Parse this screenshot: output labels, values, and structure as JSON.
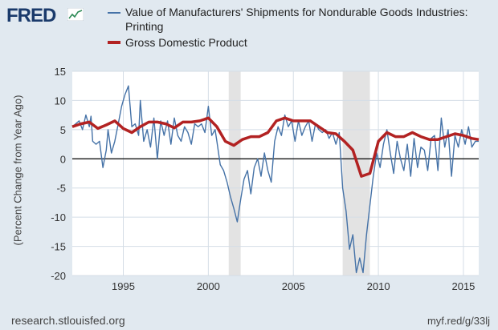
{
  "header": {
    "logo_text": "FRED"
  },
  "footer": {
    "source": "research.stlouisfed.org",
    "short_url": "myf.red/g/33lj"
  },
  "chart_data": {
    "type": "line",
    "title": "",
    "xlabel": "",
    "ylabel": "(Percent Change from Year Ago)",
    "xlim": [
      1992.0,
      2015.9
    ],
    "ylim": [
      -20,
      15
    ],
    "yticks": [
      15,
      10,
      5,
      0,
      -5,
      -10,
      -15,
      -20
    ],
    "xticks": [
      1995,
      2000,
      2005,
      2010,
      2015
    ],
    "grid": true,
    "legend_position": "top",
    "recessions": [
      [
        2001.2,
        2001.9
      ],
      [
        2007.9,
        2009.5
      ]
    ],
    "series": [
      {
        "name": "Value of Manufacturers' Shipments for Nondurable Goods Industries: Printing",
        "color": "#4572a7",
        "x": [
          1992.0,
          1992.2,
          1992.4,
          1992.6,
          1992.8,
          1993.0,
          1993.1,
          1993.2,
          1993.4,
          1993.6,
          1993.8,
          1994.0,
          1994.1,
          1994.3,
          1994.5,
          1994.7,
          1994.9,
          1995.1,
          1995.3,
          1995.5,
          1995.7,
          1995.9,
          1996.0,
          1996.2,
          1996.4,
          1996.6,
          1996.8,
          1997.0,
          1997.2,
          1997.4,
          1997.6,
          1997.8,
          1998.0,
          1998.2,
          1998.4,
          1998.6,
          1998.8,
          1999.0,
          1999.2,
          1999.4,
          1999.6,
          1999.8,
          2000.0,
          2000.2,
          2000.4,
          2000.5,
          2000.7,
          2000.9,
          2001.1,
          2001.3,
          2001.5,
          2001.7,
          2001.9,
          2002.1,
          2002.3,
          2002.5,
          2002.7,
          2002.9,
          2003.1,
          2003.3,
          2003.5,
          2003.7,
          2003.9,
          2004.1,
          2004.3,
          2004.5,
          2004.7,
          2004.9,
          2005.1,
          2005.3,
          2005.5,
          2005.7,
          2005.9,
          2006.1,
          2006.3,
          2006.5,
          2006.7,
          2006.9,
          2007.1,
          2007.3,
          2007.5,
          2007.7,
          2007.9,
          2008.1,
          2008.3,
          2008.5,
          2008.7,
          2008.9,
          2009.1,
          2009.3,
          2009.5,
          2009.7,
          2009.9,
          2010.1,
          2010.3,
          2010.5,
          2010.7,
          2010.9,
          2011.1,
          2011.3,
          2011.5,
          2011.7,
          2011.9,
          2012.1,
          2012.3,
          2012.5,
          2012.7,
          2012.9,
          2013.1,
          2013.3,
          2013.5,
          2013.7,
          2013.9,
          2014.1,
          2014.3,
          2014.5,
          2014.7,
          2014.9,
          2015.1,
          2015.3,
          2015.5,
          2015.7,
          2015.9
        ],
        "y": [
          5.5,
          6.0,
          6.5,
          5.0,
          7.5,
          5.5,
          7.3,
          3.0,
          2.5,
          3.0,
          -1.5,
          1.5,
          5.0,
          1.0,
          3.0,
          6.0,
          9.0,
          11.0,
          12.5,
          5.5,
          6.0,
          4.0,
          10.0,
          3.0,
          5.0,
          2.0,
          7.0,
          0.0,
          6.5,
          4.0,
          6.5,
          2.5,
          7.0,
          4.0,
          3.0,
          5.5,
          4.5,
          2.5,
          6.0,
          5.5,
          6.0,
          4.5,
          9.0,
          4.0,
          5.0,
          3.0,
          -1.0,
          -2.0,
          -4.0,
          -6.5,
          -8.5,
          -10.8,
          -7.0,
          -3.5,
          -2.0,
          -6.0,
          -1.5,
          0.0,
          -3.0,
          1.0,
          -2.0,
          -4.0,
          3.0,
          5.5,
          4.0,
          7.5,
          5.5,
          6.5,
          3.0,
          6.5,
          4.0,
          5.5,
          6.5,
          3.0,
          6.0,
          5.0,
          4.5,
          5.0,
          3.5,
          4.5,
          2.5,
          4.5,
          -5.0,
          -9.0,
          -15.5,
          -13.0,
          -19.5,
          -17.0,
          -19.5,
          -13.0,
          -8.0,
          -3.0,
          1.0,
          -1.5,
          2.5,
          5.0,
          1.0,
          -2.5,
          3.0,
          0.0,
          -2.0,
          2.5,
          -3.0,
          3.5,
          -1.5,
          2.0,
          1.5,
          -2.0,
          3.5,
          4.0,
          -2.0,
          7.0,
          2.0,
          5.0,
          -3.0,
          4.0,
          2.0,
          5.0,
          2.5,
          5.5,
          2.0,
          3.0,
          3.0
        ]
      },
      {
        "name": "Gross Domestic Product",
        "color": "#b22222",
        "x": [
          1992.0,
          1992.5,
          1993.0,
          1993.5,
          1994.0,
          1994.5,
          1995.0,
          1995.5,
          1996.0,
          1996.5,
          1997.0,
          1997.5,
          1998.0,
          1998.5,
          1999.0,
          1999.5,
          2000.0,
          2000.5,
          2001.0,
          2001.5,
          2002.0,
          2002.5,
          2003.0,
          2003.5,
          2004.0,
          2004.5,
          2005.0,
          2005.5,
          2006.0,
          2006.5,
          2007.0,
          2007.5,
          2008.0,
          2008.5,
          2009.0,
          2009.5,
          2010.0,
          2010.5,
          2011.0,
          2011.5,
          2012.0,
          2012.5,
          2013.0,
          2013.5,
          2014.0,
          2014.5,
          2015.0,
          2015.5,
          2015.9
        ],
        "y": [
          5.5,
          6.0,
          6.3,
          5.2,
          5.8,
          6.5,
          5.2,
          4.5,
          5.5,
          6.3,
          6.3,
          6.0,
          5.3,
          6.3,
          6.3,
          6.5,
          7.0,
          5.5,
          3.0,
          2.3,
          3.3,
          3.8,
          3.8,
          4.5,
          6.5,
          7.0,
          6.5,
          6.5,
          6.5,
          5.5,
          4.5,
          4.3,
          3.0,
          1.5,
          -3.0,
          -2.5,
          3.0,
          4.5,
          3.8,
          3.8,
          4.5,
          3.8,
          3.3,
          3.3,
          3.8,
          4.3,
          4.0,
          3.5,
          3.3
        ]
      }
    ]
  }
}
